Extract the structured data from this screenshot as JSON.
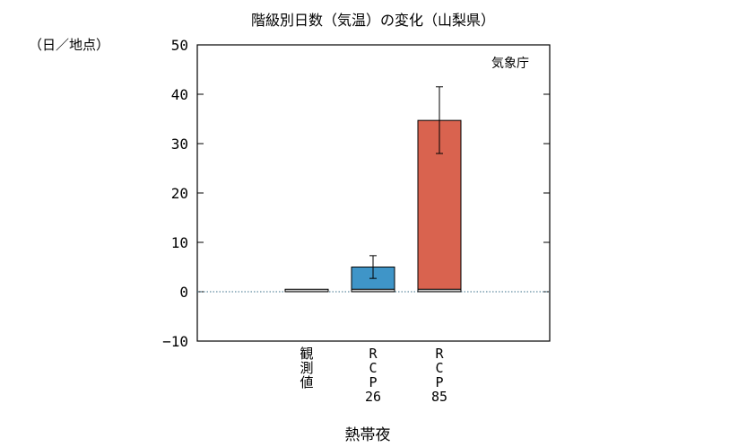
{
  "chart_data": {
    "type": "bar",
    "title": "階級別日数（気温）の変化（山梨県）",
    "ylabel": "（日／地点）",
    "xlabel": "熱帯夜",
    "source_note": "気象庁",
    "ylim": [
      -10,
      50
    ],
    "yticks": [
      -10,
      0,
      10,
      20,
      30,
      40,
      50
    ],
    "zero_line": "dotted",
    "grid": false,
    "categories": [
      {
        "label_lines": [
          "観",
          "測",
          "値"
        ]
      },
      {
        "label_lines": [
          "R",
          "C",
          "P",
          "26"
        ]
      },
      {
        "label_lines": [
          "R",
          "C",
          "P",
          "85"
        ]
      }
    ],
    "observed_value": 0.5,
    "values": [
      0.5,
      5.0,
      34.7
    ],
    "error_low": [
      null,
      2.7,
      28.0
    ],
    "error_high": [
      null,
      7.3,
      41.5
    ],
    "colors": [
      "#c8c8c8",
      "#3f95c8",
      "#d9634f"
    ]
  }
}
